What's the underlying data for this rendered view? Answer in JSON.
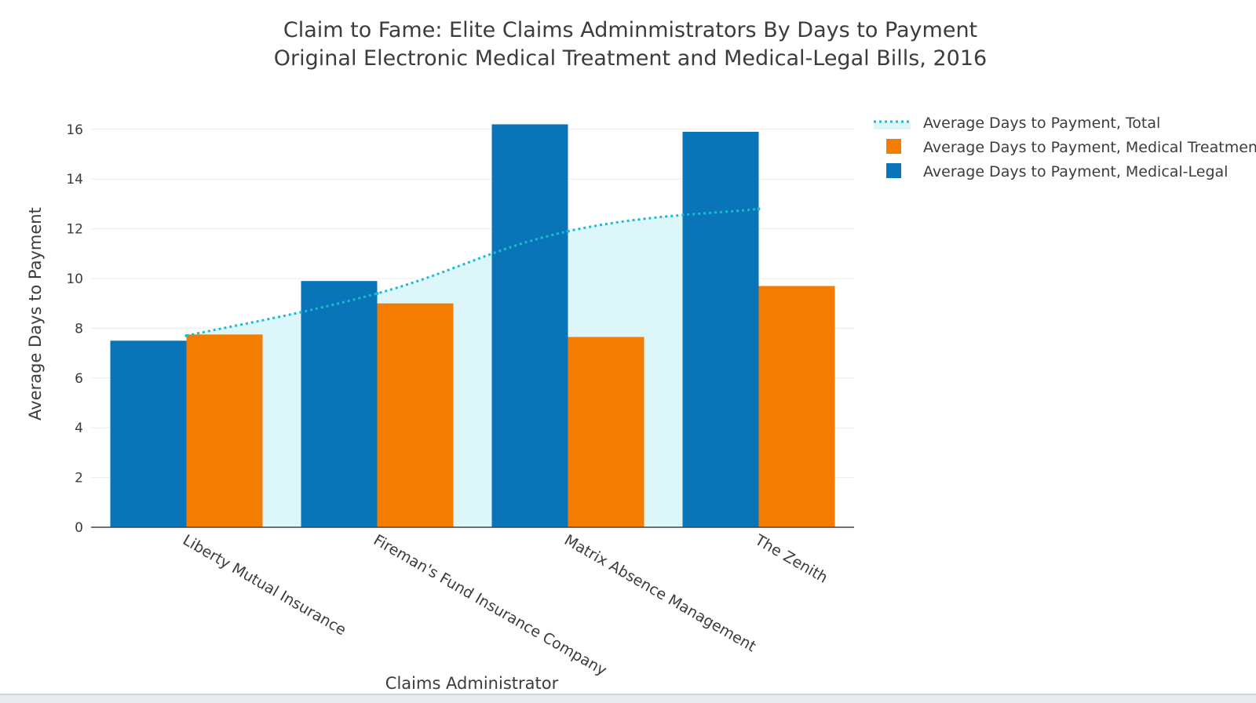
{
  "chart_data": {
    "type": "bar",
    "title": "Claim to Fame: Elite Claims Adminmistrators By Days to Payment",
    "subtitle": "Original Electronic Medical Treatment and Medical-Legal Bills, 2016",
    "xlabel": "Claims Administrator",
    "ylabel": "Average Days to Payment",
    "ylim": [
      0,
      16.8
    ],
    "yticks": [
      "0",
      "2",
      "4",
      "6",
      "8",
      "10",
      "12",
      "14",
      "16"
    ],
    "grid": true,
    "legend_position": "top-right",
    "categories": [
      "Liberty Mutual Insurance",
      "Fireman's Fund Insurance Company",
      "Matrix Absence Management",
      "The Zenith"
    ],
    "series": [
      {
        "name": "Average Days to Payment, Medical-Legal",
        "type": "bar",
        "color": "#0a74b9",
        "values": [
          7.5,
          9.9,
          16.2,
          15.9
        ]
      },
      {
        "name": "Average Days to Payment, Medical Treatment",
        "type": "bar",
        "color": "#f47c00",
        "values": [
          7.75,
          9.0,
          7.65,
          9.7
        ]
      },
      {
        "name": "Average Days to Payment, Total",
        "type": "line",
        "style": "dotted",
        "fill": "tozeroy",
        "color": "#17becf",
        "fill_color": "#ddf6fa",
        "values": [
          7.7,
          9.4,
          11.9,
          12.8
        ]
      }
    ],
    "legend_order": [
      "Average Days to Payment, Total",
      "Average Days to Payment, Medical Treatment",
      "Average Days to Payment, Medical-Legal"
    ]
  }
}
